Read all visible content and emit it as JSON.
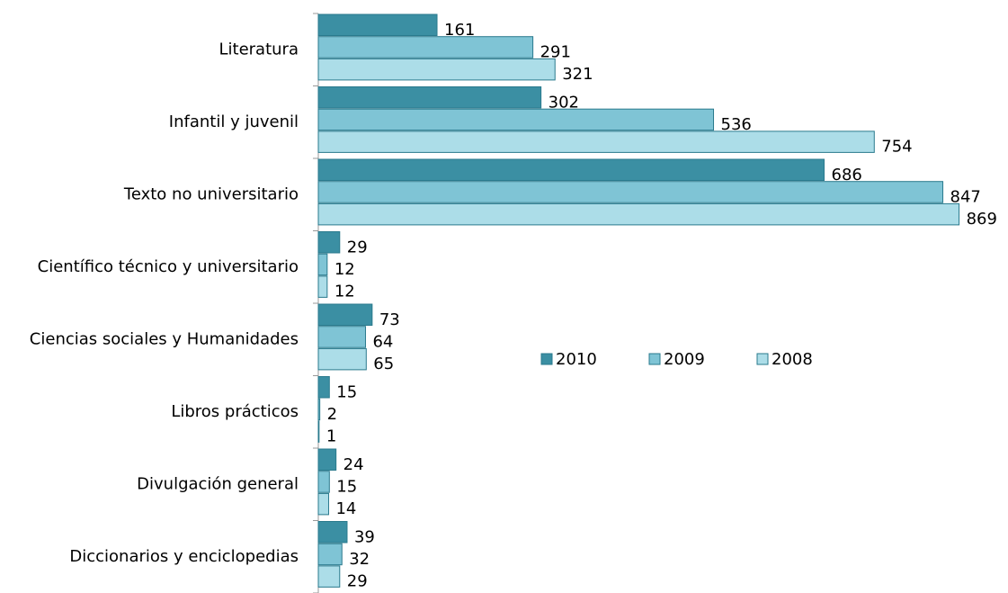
{
  "chart_data": {
    "type": "bar",
    "orientation": "horizontal",
    "categories": [
      "Literatura",
      "Infantil y juvenil",
      "Texto no universitario",
      "Científico técnico y universitario",
      "Ciencias sociales y Humanidades",
      "Libros prácticos",
      "Divulgación general",
      "Diccionarios y enciclopedias"
    ],
    "series": [
      {
        "name": "2010",
        "color": "#3b8fa3",
        "values": [
          161,
          302,
          686,
          29,
          73,
          15,
          24,
          39
        ]
      },
      {
        "name": "2009",
        "color": "#7fc4d5",
        "values": [
          291,
          536,
          847,
          12,
          64,
          2,
          15,
          32
        ]
      },
      {
        "name": "2008",
        "color": "#acdde8",
        "values": [
          321,
          754,
          869,
          12,
          65,
          1,
          14,
          29
        ]
      }
    ],
    "xlim": [
      0,
      1000
    ],
    "legend": "center"
  }
}
